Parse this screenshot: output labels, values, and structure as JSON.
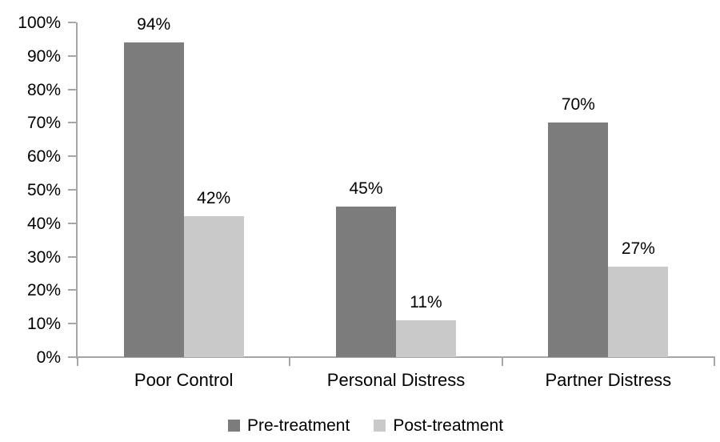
{
  "chart_data": {
    "type": "bar",
    "title": "",
    "xlabel": "",
    "ylabel": "",
    "categories": [
      "Poor Control",
      "Personal Distress",
      "Partner Distress"
    ],
    "series": [
      {
        "name": "Pre-treatment",
        "color": "#7C7C7C",
        "values": [
          94,
          45,
          70
        ],
        "labels": [
          "94%",
          "45%",
          "70%"
        ]
      },
      {
        "name": "Post-treatment",
        "color": "#C9C9C9",
        "values": [
          42,
          11,
          27
        ],
        "labels": [
          "42%",
          "11%",
          "27%"
        ]
      }
    ],
    "y_axis": {
      "min": 0,
      "max": 100,
      "step": 10,
      "tick_labels": [
        "0%",
        "10%",
        "20%",
        "30%",
        "40%",
        "50%",
        "60%",
        "70%",
        "80%",
        "90%",
        "100%"
      ]
    },
    "grid": false,
    "legend_position": "bottom",
    "axis_color": "#A6A6A6",
    "text_color": "#000000",
    "background_color": "#FFFFFF"
  }
}
